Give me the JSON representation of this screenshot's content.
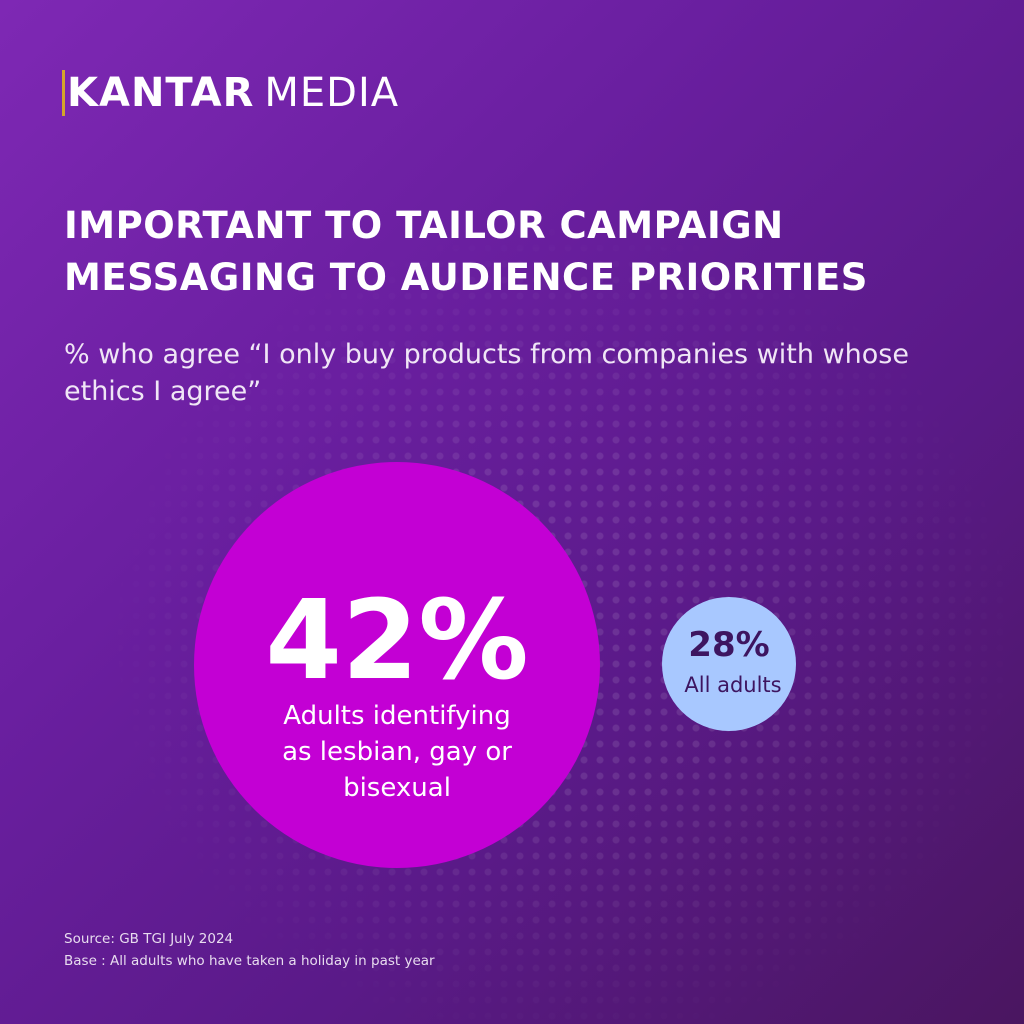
{
  "brand": {
    "bold": "KANTAR",
    "light": "MEDIA"
  },
  "title": "IMPORTANT TO TAILOR CAMPAIGN MESSAGING TO AUDIENCE PRIORITIES",
  "subtitle": "% who agree “I only buy products from companies with whose ethics I agree”",
  "colors": {
    "primary": "#c300d4",
    "secondary": "#a8c8ff",
    "secondary_text": "#3d1560"
  },
  "chart_data": {
    "type": "bubble",
    "unit": "%",
    "series": [
      {
        "value": 42,
        "label_value": "42%",
        "label": "Adults identifying as lesbian, gay or bisexual",
        "label_lines": [
          "Adults identifying",
          "as lesbian, gay or",
          "bisexual"
        ]
      },
      {
        "value": 28,
        "label_value": "28%",
        "label": "All adults",
        "label_lines": [
          "All adults"
        ]
      }
    ]
  },
  "footer": {
    "source": "Source: GB TGI July 2024",
    "base": "Base : All adults who have taken a holiday in past year"
  }
}
